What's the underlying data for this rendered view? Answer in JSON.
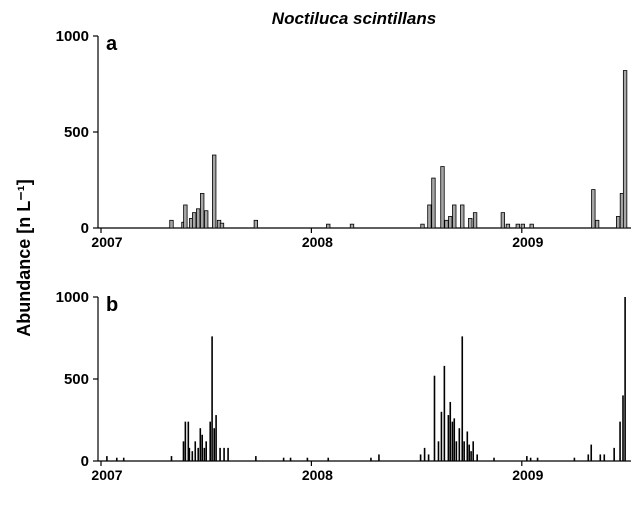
{
  "chart_data": [
    {
      "type": "bar",
      "title": "Noctiluca scintillans",
      "ylabel": "Abundance [n L⁻¹]",
      "panel": "a",
      "color": "#a6a6a6",
      "x": [
        2007.335,
        2007.392,
        2007.401,
        2007.429,
        2007.443,
        2007.462,
        2007.481,
        2007.5,
        2007.538,
        2007.561,
        2007.575,
        2007.736,
        2008.08,
        2008.193,
        2008.528,
        2008.561,
        2008.58,
        2008.623,
        2008.642,
        2008.66,
        2008.679,
        2008.717,
        2008.755,
        2008.778,
        2008.91,
        2008.934,
        2008.981,
        2009.005,
        2009.047,
        2009.34,
        2009.358,
        2009.458,
        2009.476,
        2009.491
      ],
      "values": [
        40,
        30,
        120,
        50,
        80,
        100,
        180,
        90,
        380,
        40,
        25,
        40,
        20,
        20,
        20,
        120,
        260,
        320,
        40,
        60,
        120,
        120,
        50,
        80,
        80,
        20,
        20,
        20,
        20,
        200,
        40,
        60,
        180,
        820
      ],
      "xlim": [
        2007,
        2009.5
      ],
      "xticks": [
        2007,
        2008,
        2009
      ],
      "ylim": [
        0,
        1000
      ],
      "yticks": [
        0,
        500,
        1000
      ]
    },
    {
      "type": "bar",
      "panel": "b",
      "color": "#000000",
      "x": [
        2007.028,
        2007.075,
        2007.108,
        2007.335,
        2007.392,
        2007.401,
        2007.415,
        2007.42,
        2007.434,
        2007.448,
        2007.462,
        2007.472,
        2007.481,
        2007.491,
        2007.5,
        2007.519,
        2007.528,
        2007.538,
        2007.547,
        2007.566,
        2007.585,
        2007.604,
        2007.736,
        2007.868,
        2007.901,
        2007.981,
        2008.08,
        2008.283,
        2008.321,
        2008.519,
        2008.538,
        2008.557,
        2008.585,
        2008.604,
        2008.618,
        2008.632,
        2008.651,
        2008.66,
        2008.67,
        2008.679,
        2008.689,
        2008.703,
        2008.717,
        2008.726,
        2008.741,
        2008.75,
        2008.759,
        2008.769,
        2008.788,
        2008.868,
        2009.024,
        2009.042,
        2009.075,
        2009.25,
        2009.316,
        2009.33,
        2009.373,
        2009.392,
        2009.439,
        2009.467,
        2009.481,
        2009.491
      ],
      "values": [
        30,
        20,
        20,
        30,
        120,
        240,
        240,
        80,
        60,
        120,
        80,
        200,
        160,
        80,
        120,
        240,
        760,
        200,
        280,
        80,
        80,
        80,
        30,
        20,
        20,
        20,
        20,
        20,
        40,
        40,
        80,
        40,
        520,
        120,
        300,
        580,
        280,
        360,
        240,
        260,
        120,
        200,
        760,
        120,
        180,
        100,
        60,
        120,
        40,
        20,
        30,
        20,
        20,
        20,
        40,
        100,
        40,
        40,
        80,
        240,
        400,
        1000
      ],
      "xlim": [
        2007,
        2009.5
      ],
      "xticks": [
        2007,
        2008,
        2009
      ],
      "ylim": [
        0,
        1000
      ],
      "yticks": [
        0,
        500,
        1000
      ]
    }
  ]
}
